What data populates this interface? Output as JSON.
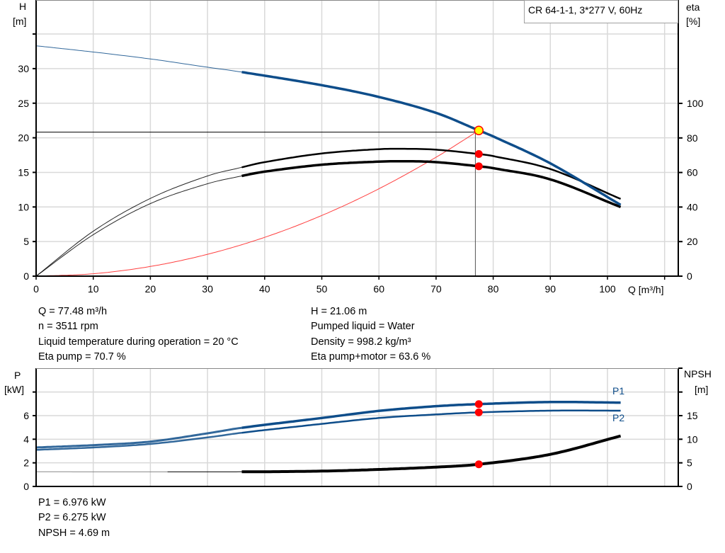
{
  "legend_box": "CR 64-1-1, 3*277 V, 60Hz",
  "colors": {
    "head": "#0e4d8a",
    "power": "#0e4d8a",
    "efficiency": "#000000",
    "npsh": "#000000",
    "system": "#ff4040",
    "marker": "#ff0000",
    "duty_point": "#ffff00",
    "grid": "#d9d9d9"
  },
  "info_top": {
    "left": [
      "Q = 77.48 m³/h",
      "n = 3511 rpm",
      "Liquid temperature during operation = 20 °C",
      "Eta pump = 70.7 %"
    ],
    "right": [
      "H = 21.06 m",
      "Pumped liquid = Water",
      "Density = 998.2 kg/m³",
      "Eta pump+motor = 63.6 %"
    ]
  },
  "info_bottom": [
    "P1 = 6.976 kW",
    "P2 = 6.275 kW",
    "NPSH = 4.69 m"
  ],
  "chart_data": [
    {
      "type": "line",
      "x_label": "Q [m³/h]",
      "y_label": [
        "H",
        "[m]"
      ],
      "y2_label": [
        "eta",
        "[%]"
      ],
      "xlim": [
        0,
        110
      ],
      "ylim": [
        0,
        35
      ],
      "y2lim": [
        0,
        143
      ],
      "x_ticks": [
        0,
        10,
        20,
        30,
        40,
        50,
        60,
        70,
        80,
        90,
        100
      ],
      "y_ticks": [
        0,
        5,
        10,
        15,
        20,
        25,
        30
      ],
      "y2_ticks": [
        0,
        20,
        40,
        60,
        80,
        100
      ],
      "grid": true,
      "series": [
        {
          "id": "head",
          "axis": "y",
          "color": "#0e4d8a",
          "points": [
            [
              0,
              33.3
            ],
            [
              10,
              32.4
            ],
            [
              20,
              31.4
            ],
            [
              30,
              30.2
            ],
            [
              36,
              29.5
            ],
            [
              50,
              27.6
            ],
            [
              60,
              25.9
            ],
            [
              70,
              23.6
            ],
            [
              77.48,
              21.06
            ],
            [
              80,
              20.2
            ],
            [
              90,
              16.3
            ],
            [
              102.3,
              10.3
            ]
          ]
        },
        {
          "id": "eta-pump",
          "axis": "y2",
          "color": "#000000",
          "points": [
            [
              0,
              0
            ],
            [
              10,
              26
            ],
            [
              20,
              45
            ],
            [
              30,
              58
            ],
            [
              36,
              63
            ],
            [
              40,
              66
            ],
            [
              50,
              71
            ],
            [
              60,
              73.5
            ],
            [
              65,
              73.7
            ],
            [
              70,
              73.2
            ],
            [
              77.48,
              70.7
            ],
            [
              80,
              69.5
            ],
            [
              90,
              62
            ],
            [
              102.3,
              44.7
            ]
          ]
        },
        {
          "id": "eta-pump-motor",
          "axis": "y2",
          "color": "#000000",
          "points": [
            [
              0,
              0
            ],
            [
              10,
              24
            ],
            [
              20,
              42
            ],
            [
              30,
              53.5
            ],
            [
              36,
              58
            ],
            [
              40,
              60.5
            ],
            [
              50,
              64.5
            ],
            [
              60,
              66.3
            ],
            [
              65,
              66.5
            ],
            [
              70,
              66
            ],
            [
              77.48,
              63.6
            ],
            [
              80,
              62.5
            ],
            [
              90,
              56
            ],
            [
              102.3,
              40
            ]
          ]
        },
        {
          "id": "system-curve",
          "axis": "y",
          "color": "#ff4040",
          "points": [
            [
              0,
              0
            ],
            [
              10,
              0.35
            ],
            [
              20,
              1.4
            ],
            [
              30,
              3.16
            ],
            [
              40,
              5.61
            ],
            [
              50,
              8.77
            ],
            [
              60,
              12.63
            ],
            [
              70,
              17.19
            ],
            [
              77.48,
              21.06
            ]
          ]
        }
      ],
      "duty_point": {
        "Q": 77.48,
        "H": 21.06,
        "eta_pump": 70.7,
        "eta_total": 63.6
      }
    },
    {
      "type": "line",
      "y_label": [
        "P",
        "[kW]"
      ],
      "y2_label": [
        "NPSH",
        "[m]"
      ],
      "xlim": [
        0,
        110
      ],
      "ylim": [
        0,
        9.4
      ],
      "y2lim": [
        0,
        23.5
      ],
      "y_ticks": [
        0,
        2,
        4,
        6
      ],
      "y2_ticks": [
        0,
        5,
        10,
        15
      ],
      "grid": true,
      "series": [
        {
          "id": "P1",
          "name": "P1",
          "axis": "y",
          "color": "#0e4d8a",
          "points": [
            [
              0,
              3.3
            ],
            [
              10,
              3.5
            ],
            [
              20,
              3.8
            ],
            [
              30,
              4.5
            ],
            [
              36,
              4.97
            ],
            [
              50,
              5.8
            ],
            [
              60,
              6.4
            ],
            [
              70,
              6.8
            ],
            [
              77.48,
              6.976
            ],
            [
              90,
              7.15
            ],
            [
              102.3,
              7.1
            ]
          ]
        },
        {
          "id": "P2",
          "name": "P2",
          "axis": "y",
          "color": "#0e4d8a",
          "points": [
            [
              0,
              3.1
            ],
            [
              10,
              3.3
            ],
            [
              20,
              3.6
            ],
            [
              30,
              4.15
            ],
            [
              36,
              4.55
            ],
            [
              50,
              5.3
            ],
            [
              60,
              5.8
            ],
            [
              70,
              6.1
            ],
            [
              77.48,
              6.275
            ],
            [
              90,
              6.42
            ],
            [
              102.3,
              6.42
            ]
          ]
        },
        {
          "id": "NPSH",
          "axis": "y2",
          "color": "#000000",
          "points": [
            [
              0,
              3.1
            ],
            [
              36,
              3.1
            ],
            [
              50,
              3.25
            ],
            [
              60,
              3.6
            ],
            [
              70,
              4.1
            ],
            [
              77.48,
              4.69
            ],
            [
              90,
              6.8
            ],
            [
              102.3,
              10.7
            ]
          ]
        }
      ],
      "duty_point": {
        "Q": 77.48,
        "P1": 6.976,
        "P2": 6.275,
        "NPSH": 4.69
      }
    }
  ]
}
